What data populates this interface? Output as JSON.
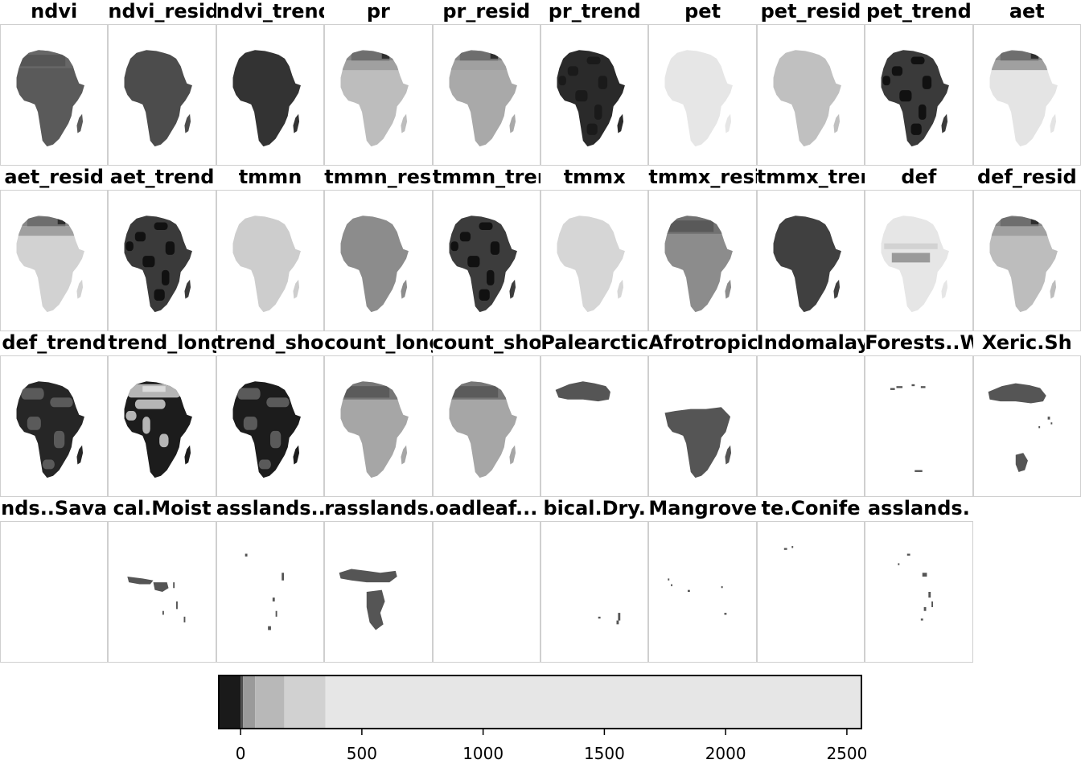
{
  "chart_data": {
    "type": "heatmap",
    "description_note": "",
    "panels": [
      {
        "title": "ndvi",
        "layer": "ndvi",
        "gray": "#5a5a5a",
        "patches": [
          "north-dark"
        ]
      },
      {
        "title": "ndvi_resid",
        "layer": "ndvi_resid",
        "gray": "#4c4c4c",
        "patches": []
      },
      {
        "title": "ndvi_trend",
        "layer": "ndvi_trend",
        "gray": "#333333",
        "patches": []
      },
      {
        "title": "pr",
        "layer": "pr",
        "gray": "#bdbdbd",
        "patches": [
          "sahara-gradient"
        ]
      },
      {
        "title": "pr_resid",
        "layer": "pr_resid",
        "gray": "#a9a9a9",
        "patches": [
          "sahara-gradient"
        ]
      },
      {
        "title": "pr_trend",
        "layer": "pr_trend",
        "gray": "#2a2a2a",
        "patches": [
          "blotches-dark"
        ]
      },
      {
        "title": "pet",
        "layer": "pet",
        "gray": "#e6e6e6",
        "patches": []
      },
      {
        "title": "pet_resid",
        "layer": "pet_resid",
        "gray": "#c0c0c0",
        "patches": []
      },
      {
        "title": "pet_trend",
        "layer": "pet_trend",
        "gray": "#3a3a3a",
        "patches": [
          "blotches-black"
        ]
      },
      {
        "title": "aet",
        "layer": "aet",
        "gray": "#e4e4e4",
        "patches": [
          "sahara-gradient"
        ]
      },
      {
        "title": "aet_resid",
        "layer": "aet_resid",
        "gray": "#d2d2d2",
        "patches": [
          "sahara-gradient"
        ]
      },
      {
        "title": "aet_trend",
        "layer": "aet_trend",
        "gray": "#3a3a3a",
        "patches": [
          "blotches-black"
        ]
      },
      {
        "title": "tmmn",
        "layer": "tmmn",
        "gray": "#cdcdcd",
        "patches": []
      },
      {
        "title": "tmmn_resid",
        "layer": "tmmn_resid",
        "gray": "#8c8c8c",
        "patches": []
      },
      {
        "title": "tmmn_trend",
        "layer": "tmmn_trend",
        "gray": "#3c3c3c",
        "patches": [
          "blotches-black"
        ]
      },
      {
        "title": "tmmx",
        "layer": "tmmx",
        "gray": "#d6d6d6",
        "patches": []
      },
      {
        "title": "tmmx_resid",
        "layer": "tmmx_resid",
        "gray": "#8c8c8c",
        "patches": [
          "north-dark"
        ]
      },
      {
        "title": "tmmx_trend",
        "layer": "tmmx_trend",
        "gray": "#404040",
        "patches": []
      },
      {
        "title": "def",
        "layer": "def",
        "gray": "#e6e6e6",
        "patches": [
          "belt"
        ]
      },
      {
        "title": "def_resid",
        "layer": "def_resid",
        "gray": "#bdbdbd",
        "patches": [
          "sahara-gradient"
        ]
      },
      {
        "title": "def_trend",
        "layer": "def_trend",
        "gray": "#262626",
        "patches": [
          "blotches-gray"
        ]
      },
      {
        "title": "trend_long",
        "layer": "trend_long",
        "gray": "#1c1c1c",
        "patches": [
          "blotches-light"
        ]
      },
      {
        "title": "trend_short",
        "layer": "trend_short",
        "gray": "#1c1c1c",
        "patches": [
          "blotches-gray"
        ]
      },
      {
        "title": "count_long",
        "layer": "count_long",
        "gray": "#a6a6a6",
        "patches": [
          "north-dark"
        ]
      },
      {
        "title": "count_short",
        "layer": "count_short",
        "gray": "#a6a6a6",
        "patches": [
          "north-dark"
        ]
      },
      {
        "title": "Palearctic",
        "layer": "Palearctic",
        "gray": "#555555",
        "region": "north"
      },
      {
        "title": "Afrotropic",
        "layer": "Afrotropic",
        "gray": "#555555",
        "region": "subsahara"
      },
      {
        "title": "Indomalayan",
        "layer": "Indomalayan",
        "gray": "#555555",
        "region": "none"
      },
      {
        "title": "Forests..Wo",
        "layer": "Forests..Wo",
        "gray": "#555555",
        "region": "specks-north"
      },
      {
        "title": "Xeric.Sh",
        "layer": "Xeric.Sh",
        "gray": "#555555",
        "region": "north-south"
      },
      {
        "title": "nds..Sava",
        "layer": "nds..Sava",
        "gray": "#555555",
        "region": "none"
      },
      {
        "title": "cal.Moist",
        "layer": "cal.Moist",
        "gray": "#555555",
        "region": "guinea"
      },
      {
        "title": "asslands..",
        "layer": "asslands..",
        "gray": "#555555",
        "region": "specks-east"
      },
      {
        "title": "rasslands.",
        "layer": "rasslands.",
        "gray": "#555555",
        "region": "savanna"
      },
      {
        "title": "oadleaf...",
        "layer": "oadleaf...",
        "gray": "#555555",
        "region": "none"
      },
      {
        "title": "bical.Dry.",
        "layer": "bical.Dry.",
        "gray": "#555555",
        "region": "specks-madagascar"
      },
      {
        "title": "Mangroves",
        "layer": "Mangroves",
        "gray": "#555555",
        "region": "specks-coast"
      },
      {
        "title": "te.Conife",
        "layer": "te.Conife",
        "gray": "#555555",
        "region": "specks-nw"
      },
      {
        "title": "asslands.",
        "layer": "asslands.",
        "gray": "#555555",
        "region": "specks-highland"
      }
    ],
    "colorbar": {
      "ticks": [
        0,
        500,
        1000,
        1500,
        2000,
        2500
      ],
      "range": [
        -90,
        2560
      ],
      "bins": [
        {
          "from": -90,
          "to": 0,
          "color": "#1a1a1a"
        },
        {
          "from": 0,
          "to": 10,
          "color": "#4d4d4d"
        },
        {
          "from": 10,
          "to": 60,
          "color": "#9a9a9a"
        },
        {
          "from": 60,
          "to": 180,
          "color": "#b8b8b8"
        },
        {
          "from": 180,
          "to": 350,
          "color": "#d1d1d1"
        },
        {
          "from": 350,
          "to": 2560,
          "color": "#e6e6e6"
        }
      ]
    }
  }
}
